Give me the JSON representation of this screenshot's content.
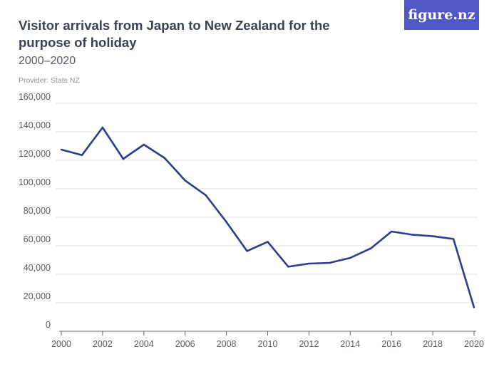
{
  "title": "Visitor arrivals from Japan to New Zealand for the purpose of holiday",
  "subtitle": "2000–2020",
  "provider": "Provider: Stats NZ",
  "logo": "figure.nz",
  "colors": {
    "line": "#2b3d8f",
    "logo_bg": "#5058c8",
    "grid": "#e3e3e3"
  },
  "chart_data": {
    "type": "line",
    "x": [
      2000,
      2001,
      2002,
      2003,
      2004,
      2005,
      2006,
      2007,
      2008,
      2009,
      2010,
      2011,
      2012,
      2013,
      2014,
      2015,
      2016,
      2017,
      2018,
      2019,
      2020
    ],
    "series": [
      {
        "values": [
          127500,
          123600,
          143000,
          121000,
          131000,
          121700,
          105800,
          95500,
          76700,
          56300,
          62800,
          45300,
          47500,
          48000,
          51500,
          58200,
          70000,
          67800,
          66700,
          64800,
          16700
        ]
      }
    ],
    "ylim": [
      0,
      160000
    ],
    "xlim": [
      2000,
      2020
    ],
    "yticks": [
      "0",
      "20,000",
      "40,000",
      "60,000",
      "80,000",
      "100,000",
      "120,000",
      "140,000",
      "160,000"
    ],
    "xticks": [
      "2000",
      "2002",
      "2004",
      "2006",
      "2008",
      "2010",
      "2012",
      "2014",
      "2016",
      "2018",
      "2020"
    ],
    "grid": true
  }
}
